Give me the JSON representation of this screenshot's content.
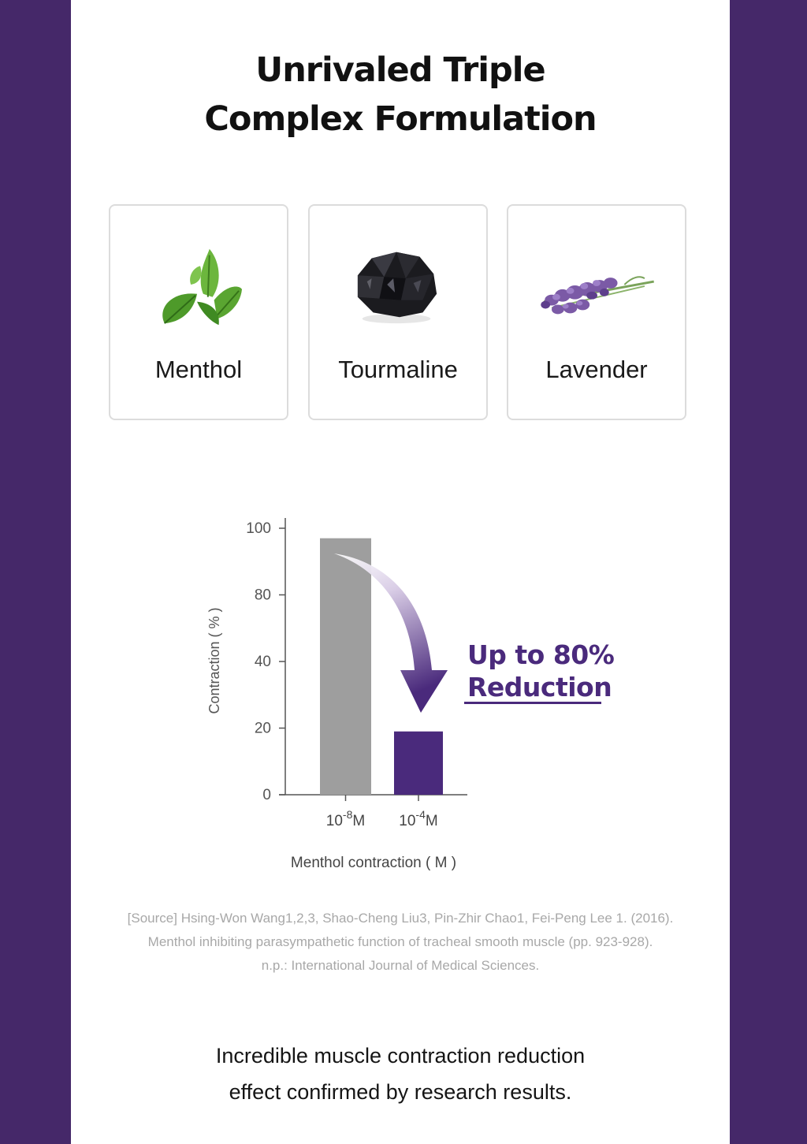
{
  "header": {
    "title_line1": "Unrivaled Triple",
    "title_line2": "Complex Formulation"
  },
  "ingredients": [
    {
      "label": "Menthol",
      "icon": "mint-leaf-icon"
    },
    {
      "label": "Tourmaline",
      "icon": "tourmaline-stone-icon"
    },
    {
      "label": "Lavender",
      "icon": "lavender-sprig-icon"
    }
  ],
  "colors": {
    "side_band": "#452869",
    "accent": "#4a2a7c",
    "bar_gray": "#9e9e9e",
    "bar_purple": "#4a2a7c"
  },
  "chart_data": {
    "type": "bar",
    "categories": [
      "10-8M",
      "10-4M"
    ],
    "category_bases": [
      "10",
      "10"
    ],
    "category_exponents": [
      "-8",
      "-4"
    ],
    "category_units": [
      "M",
      "M"
    ],
    "values": [
      97,
      19
    ],
    "yticks": [
      0,
      20,
      40,
      80,
      100
    ],
    "xlabel": "Menthol contraction ( M )",
    "ylabel": "Contraction ( % )",
    "grid": false,
    "legend": "none"
  },
  "callout": {
    "line1": "Up to 80%",
    "line2": "Reduction"
  },
  "source": {
    "line1": "[Source] Hsing-Won Wang1,2,3, Shao-Cheng Liu3, Pin-Zhir Chao1, Fei-Peng Lee 1. (2016).",
    "line2": "Menthol inhibiting parasympathetic function of tracheal smooth muscle (pp. 923-928).",
    "line3": "n.p.: International Journal of Medical Sciences."
  },
  "tagline": {
    "line1": "Incredible muscle contraction reduction",
    "line2": "effect confirmed by research results."
  }
}
